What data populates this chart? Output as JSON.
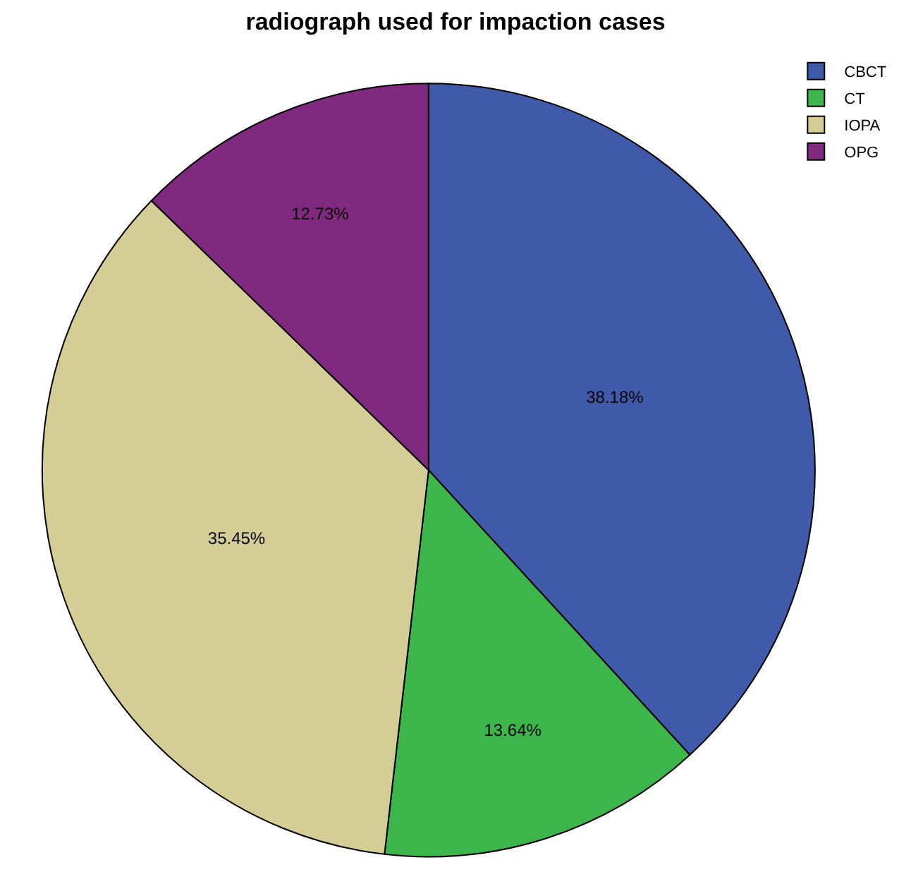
{
  "chart_data": {
    "type": "pie",
    "title": "radiograph used for impaction cases",
    "categories": [
      "CBCT",
      "CT",
      "IOPA",
      "OPG"
    ],
    "values": [
      38.18,
      13.64,
      35.45,
      12.73
    ],
    "colors": [
      "#3f5aa8",
      "#3cb54a",
      "#d4cd96",
      "#7f2a7f"
    ],
    "value_labels": [
      "38.18%",
      "13.64%",
      "35.45%",
      "12.73%"
    ],
    "legend": "top right"
  }
}
